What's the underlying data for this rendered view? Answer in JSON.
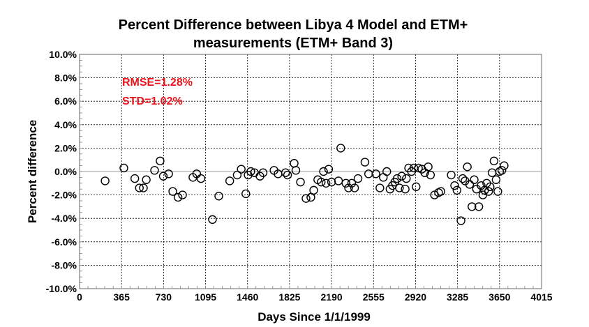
{
  "chart_data": {
    "type": "scatter",
    "title_lines": [
      "Percent Difference between Libya 4 Model and ETM+",
      "measurements (ETM+ Band 3)"
    ],
    "xlabel": "Days Since 1/1/1999",
    "ylabel": "Percent difference",
    "xlim": [
      0,
      4015
    ],
    "ylim": [
      -10,
      10
    ],
    "x_ticks": [
      0,
      365,
      730,
      1095,
      1460,
      1825,
      2190,
      2555,
      2920,
      3285,
      3650,
      4015
    ],
    "x_tick_labels": [
      "0",
      "365",
      "730",
      "1095",
      "1460",
      "1825",
      "2190",
      "2555",
      "2920",
      "3285",
      "3650",
      "4015"
    ],
    "y_ticks": [
      10,
      8,
      6,
      4,
      2,
      0,
      -2,
      -4,
      -6,
      -8,
      -10
    ],
    "y_tick_labels": [
      "10.0%",
      "8.0%",
      "6.0%",
      "4.0%",
      "2.0%",
      "0.0%",
      "-2.0%",
      "-4.0%",
      "-6.0%",
      "-8.0%",
      "-10.0%"
    ],
    "grid": true,
    "annotations": [
      "RMSE=1.28%",
      "STD=1.02%"
    ],
    "annotation_color": "#e8141b",
    "marker": "open-circle",
    "points": [
      [
        222,
        -0.8
      ],
      [
        385,
        0.3
      ],
      [
        480,
        -0.6
      ],
      [
        520,
        -1.4
      ],
      [
        555,
        -1.4
      ],
      [
        580,
        -0.7
      ],
      [
        652,
        0.1
      ],
      [
        700,
        0.9
      ],
      [
        728,
        -0.4
      ],
      [
        774,
        -0.2
      ],
      [
        810,
        -1.7
      ],
      [
        856,
        -2.2
      ],
      [
        895,
        -2.0
      ],
      [
        985,
        -0.5
      ],
      [
        1018,
        -0.2
      ],
      [
        1055,
        -0.6
      ],
      [
        1155,
        -4.1
      ],
      [
        1210,
        -2.1
      ],
      [
        1305,
        -0.8
      ],
      [
        1370,
        -0.3
      ],
      [
        1405,
        0.2
      ],
      [
        1445,
        -1.9
      ],
      [
        1465,
        -0.3
      ],
      [
        1488,
        0.0
      ],
      [
        1520,
        -0.1
      ],
      [
        1568,
        -0.4
      ],
      [
        1595,
        -0.1
      ],
      [
        1690,
        0.1
      ],
      [
        1725,
        -0.2
      ],
      [
        1790,
        -0.1
      ],
      [
        1808,
        -0.3
      ],
      [
        1865,
        0.7
      ],
      [
        1880,
        0.1
      ],
      [
        1920,
        -0.9
      ],
      [
        1968,
        -2.3
      ],
      [
        2010,
        -2.2
      ],
      [
        2035,
        -1.6
      ],
      [
        2070,
        -0.7
      ],
      [
        2100,
        -0.9
      ],
      [
        2120,
        0.0
      ],
      [
        2142,
        -1.0
      ],
      [
        2165,
        0.2
      ],
      [
        2190,
        -0.9
      ],
      [
        2250,
        -0.8
      ],
      [
        2270,
        2.0
      ],
      [
        2315,
        -1.0
      ],
      [
        2338,
        -1.4
      ],
      [
        2365,
        -1.0
      ],
      [
        2390,
        -1.4
      ],
      [
        2420,
        -0.6
      ],
      [
        2480,
        0.8
      ],
      [
        2512,
        -0.2
      ],
      [
        2575,
        -0.2
      ],
      [
        2610,
        -1.4
      ],
      [
        2640,
        -0.5
      ],
      [
        2670,
        0.0
      ],
      [
        2698,
        -1.5
      ],
      [
        2720,
        -1.2
      ],
      [
        2740,
        -0.9
      ],
      [
        2760,
        -0.6
      ],
      [
        2780,
        -1.4
      ],
      [
        2800,
        -0.4
      ],
      [
        2830,
        -1.5
      ],
      [
        2840,
        -0.6
      ],
      [
        2860,
        0.3
      ],
      [
        2885,
        0.0
      ],
      [
        2905,
        0.3
      ],
      [
        2925,
        -1.3
      ],
      [
        2945,
        0.3
      ],
      [
        2975,
        0.2
      ],
      [
        3000,
        -0.1
      ],
      [
        3030,
        0.4
      ],
      [
        3050,
        -0.3
      ],
      [
        3085,
        -2.0
      ],
      [
        3120,
        -1.8
      ],
      [
        3140,
        -1.7
      ],
      [
        3230,
        -0.3
      ],
      [
        3260,
        -1.2
      ],
      [
        3280,
        -1.6
      ],
      [
        3315,
        -4.2
      ],
      [
        3330,
        -0.6
      ],
      [
        3350,
        -0.8
      ],
      [
        3370,
        0.4
      ],
      [
        3390,
        -1.1
      ],
      [
        3410,
        -3.0
      ],
      [
        3430,
        -0.7
      ],
      [
        3450,
        -1.5
      ],
      [
        3470,
        -3.0
      ],
      [
        3490,
        -1.2
      ],
      [
        3505,
        -2.0
      ],
      [
        3520,
        -1.6
      ],
      [
        3538,
        -1.0
      ],
      [
        3555,
        -1.7
      ],
      [
        3568,
        -1.3
      ],
      [
        3585,
        -0.1
      ],
      [
        3602,
        0.9
      ],
      [
        3620,
        -0.7
      ],
      [
        3635,
        -1.7
      ],
      [
        3650,
        0.0
      ],
      [
        3670,
        0.1
      ],
      [
        3690,
        0.5
      ]
    ]
  }
}
